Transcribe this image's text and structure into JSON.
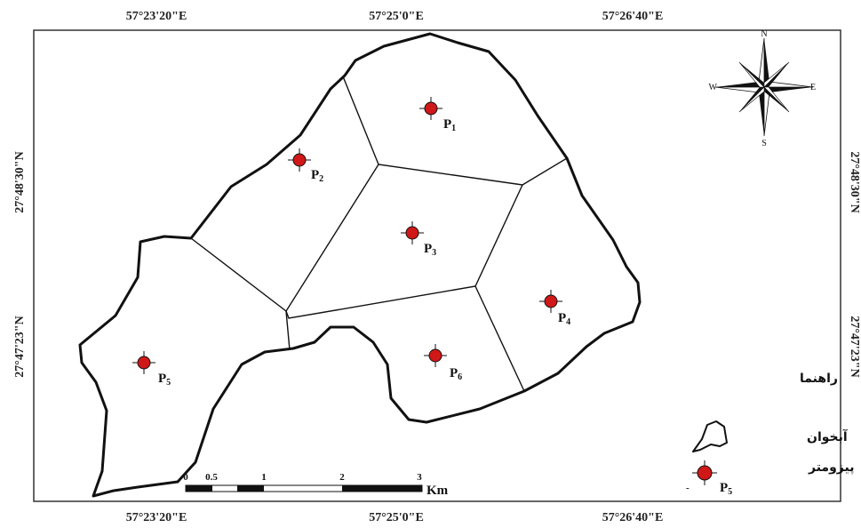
{
  "map": {
    "top_ticks": [
      "57°23'20\"E",
      "57°25'0\"E",
      "57°26'40\"E"
    ],
    "bottom_ticks": [
      "57°23'20\"E",
      "57°25'0\"E",
      "57°26'40\"E"
    ],
    "left_ticks": [
      "27°48'30\"N",
      "27°47'23\"N"
    ],
    "right_ticks": [
      "27°48'30\"N",
      "27°47'23\"N"
    ]
  },
  "piezometers": [
    {
      "id": "P",
      "sub": "1"
    },
    {
      "id": "P",
      "sub": "2"
    },
    {
      "id": "P",
      "sub": "3"
    },
    {
      "id": "P",
      "sub": "4"
    },
    {
      "id": "P",
      "sub": "5"
    },
    {
      "id": "P",
      "sub": "6"
    }
  ],
  "compass": {
    "n": "N",
    "s": "S",
    "e": "E",
    "w": "W"
  },
  "scale_bar": {
    "labels": [
      "0",
      "0.5",
      "1",
      "2",
      "3"
    ],
    "unit": "Km"
  },
  "legend": {
    "title": "راهنما",
    "aquifer_label": "آبخوان",
    "piezometer_label": "پیزومتر",
    "sample_id": "P",
    "sample_sub": "5",
    "dash": "-"
  },
  "colors": {
    "piezometer_fill": "#d01818",
    "line": "#111111"
  }
}
